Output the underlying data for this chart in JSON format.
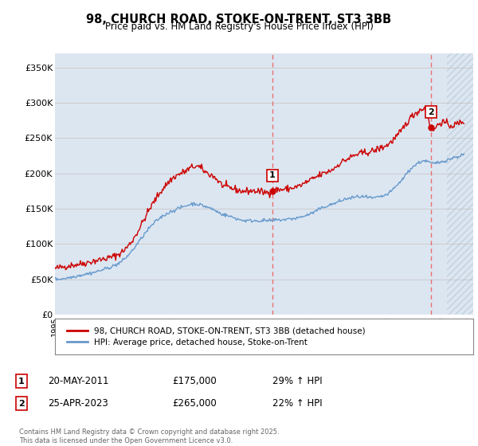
{
  "title": "98, CHURCH ROAD, STOKE-ON-TRENT, ST3 3BB",
  "subtitle": "Price paid vs. HM Land Registry's House Price Index (HPI)",
  "ylabel_ticks": [
    "£0",
    "£50K",
    "£100K",
    "£150K",
    "£200K",
    "£250K",
    "£300K",
    "£350K"
  ],
  "ytick_vals": [
    0,
    50000,
    100000,
    150000,
    200000,
    250000,
    300000,
    350000
  ],
  "ylim": [
    0,
    370000
  ],
  "xlim_start": 1995.0,
  "xlim_end": 2026.5,
  "grid_color": "#cccccc",
  "bg_color": "#dce6f1",
  "red_color": "#cc0000",
  "blue_color": "#6699cc",
  "dashed_line_color": "#e87070",
  "marker1_x": 2011.38,
  "marker1_y": 175000,
  "marker2_x": 2023.32,
  "marker2_y": 265000,
  "legend_label_red": "98, CHURCH ROAD, STOKE-ON-TRENT, ST3 3BB (detached house)",
  "legend_label_blue": "HPI: Average price, detached house, Stoke-on-Trent",
  "annotation1_label": "1",
  "annotation1_date": "20-MAY-2011",
  "annotation1_price": "£175,000",
  "annotation1_hpi": "29% ↑ HPI",
  "annotation2_label": "2",
  "annotation2_date": "25-APR-2023",
  "annotation2_price": "£265,000",
  "annotation2_hpi": "22% ↑ HPI",
  "footer": "Contains HM Land Registry data © Crown copyright and database right 2025.\nThis data is licensed under the Open Government Licence v3.0.",
  "hatch_start": 2024.5
}
